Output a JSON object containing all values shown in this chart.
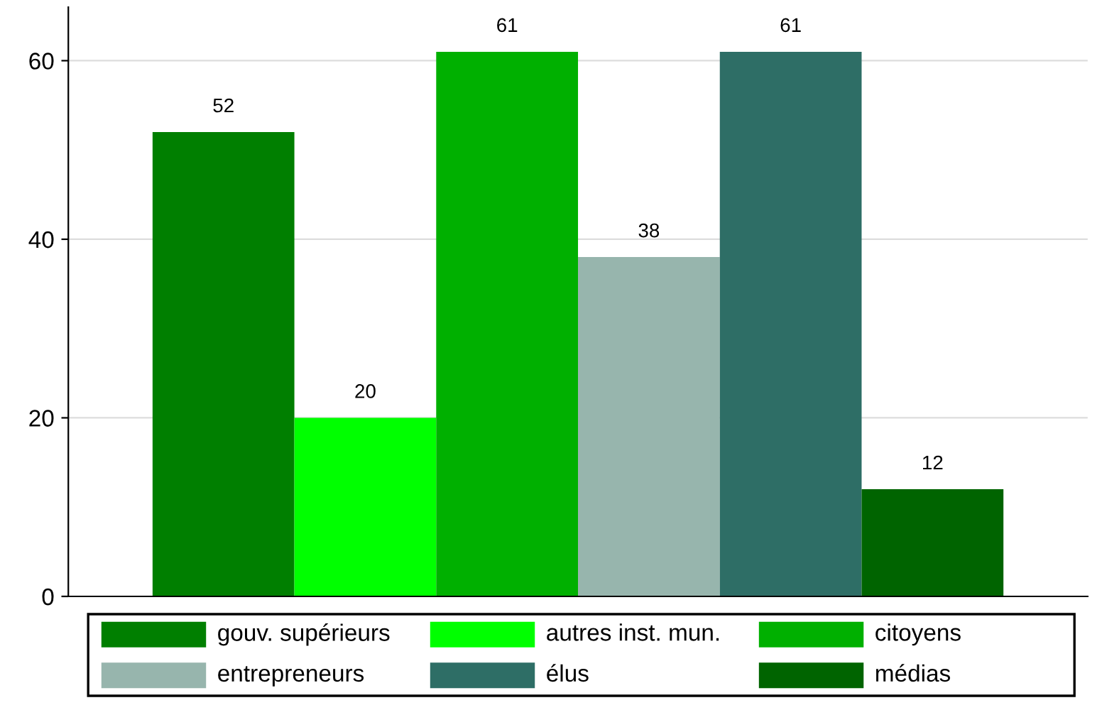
{
  "chart_data": {
    "type": "bar",
    "categories": [
      null
    ],
    "series": [
      {
        "name": "gouv. supérieurs",
        "color": "#007f00",
        "values": [
          52
        ]
      },
      {
        "name": "autres inst. mun.",
        "color": "#00ff00",
        "values": [
          20
        ]
      },
      {
        "name": "citoyens",
        "color": "#00b000",
        "values": [
          61
        ]
      },
      {
        "name": "entrepreneurs",
        "color": "#97b5ad",
        "values": [
          38
        ]
      },
      {
        "name": "élus",
        "color": "#2e6e66",
        "values": [
          61
        ]
      },
      {
        "name": "médias",
        "color": "#006400",
        "values": [
          12
        ]
      }
    ],
    "ylim": [
      0,
      66
    ],
    "yticks": [
      0,
      20,
      40,
      60
    ],
    "grid": "y",
    "data_labels": true,
    "legend": "bottom"
  }
}
